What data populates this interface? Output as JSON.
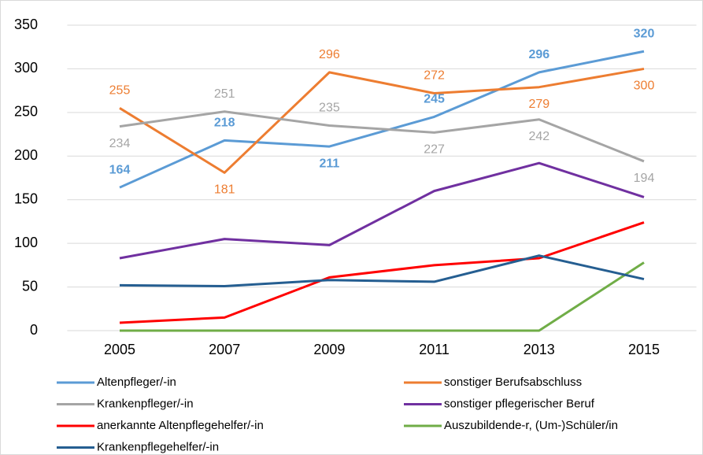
{
  "chart_data": {
    "type": "line",
    "categories": [
      "2005",
      "2007",
      "2009",
      "2011",
      "2013",
      "2015"
    ],
    "ylim": [
      0,
      350
    ],
    "yticks": [
      0,
      50,
      100,
      150,
      200,
      250,
      300,
      350
    ],
    "series": [
      {
        "name": "Altenpfleger/-in",
        "color": "#5b9bd5",
        "values": [
          164,
          218,
          211,
          245,
          296,
          320
        ],
        "labels": true,
        "bold": true
      },
      {
        "name": "sonstiger Berufsabschluss",
        "color": "#ed7d31",
        "values": [
          255,
          181,
          296,
          272,
          279,
          300
        ],
        "labels": true
      },
      {
        "name": "Krankenpfleger/-in",
        "color": "#a5a5a5",
        "values": [
          234,
          251,
          235,
          227,
          242,
          194
        ],
        "labels": true
      },
      {
        "name": "sonstiger pflegerischer Beruf",
        "color": "#7030a0",
        "values": [
          83,
          105,
          98,
          160,
          192,
          153
        ]
      },
      {
        "name": "anerkannte Altenpflegehelfer/-in",
        "color": "#ff0000",
        "values": [
          9,
          15,
          61,
          75,
          83,
          124
        ]
      },
      {
        "name": "Auszubildende-r, (Um-)Schüler/in",
        "color": "#70ad47",
        "values": [
          0,
          0,
          0,
          0,
          0,
          78
        ]
      },
      {
        "name": "Krankenpflegehelfer/-in",
        "color": "#255e91",
        "values": [
          52,
          51,
          58,
          56,
          86,
          59
        ]
      }
    ]
  }
}
